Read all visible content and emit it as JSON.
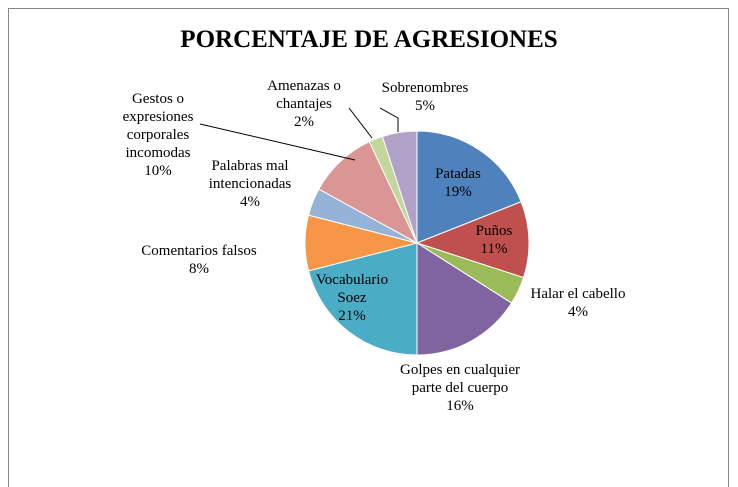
{
  "chart_data": {
    "type": "pie",
    "title": "PORCENTAJE DE AGRESIONES",
    "categories": [
      "Patadas",
      "Puños",
      "Halar el cabello",
      "Golpes en cualquier parte del cuerpo",
      "Vocabulario Soez",
      "Comentarios falsos",
      "Palabras mal intencionadas",
      "Gestos o expresiones corporales incomodas",
      "Amenazas o chantajes",
      "Sobrenombres"
    ],
    "values": [
      19,
      11,
      4,
      16,
      21,
      8,
      4,
      10,
      2,
      5
    ],
    "value_labels": [
      "19%",
      "11%",
      "4%",
      "16%",
      "21%",
      "8%",
      "4%",
      "10%",
      "2%",
      "5%"
    ],
    "colors": [
      "#4f81bd",
      "#c0504d",
      "#9bbb59",
      "#8064a2",
      "#4bacc6",
      "#f79646",
      "#95b3d7",
      "#d99694",
      "#c3d69b",
      "#b3a2c7"
    ]
  }
}
